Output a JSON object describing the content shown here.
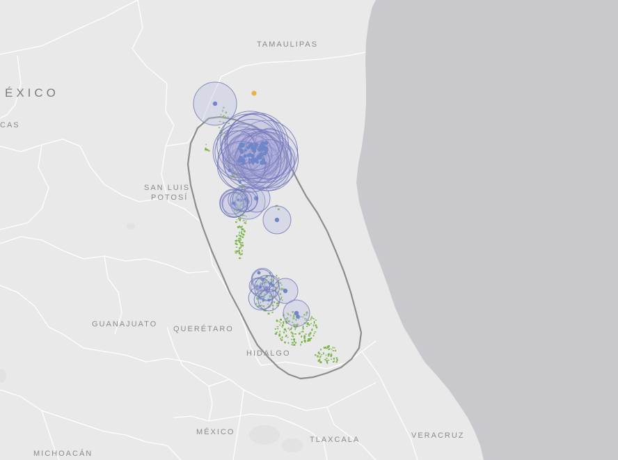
{
  "map": {
    "country_label": "ÉXICO",
    "labels": {
      "tamaulipas": "TAMAULIPAS",
      "cas": "CAS",
      "san_luis_line1": "SAN LUIS",
      "san_luis_line2": "POTOSÍ",
      "guanajuato": "GUANAJUATO",
      "queretaro": "QUERÉTARO",
      "hidalgo": "HIDALGO",
      "mexico": "MÉXICO",
      "tlaxcala": "TLAXCALA",
      "veracruz": "VERACRUZ",
      "michoacan": "MICHOACÁN"
    },
    "colors": {
      "land": "#e9e9e9",
      "water": "#c9c8cd",
      "boundary": "#ffffff",
      "range_outline": "#878f8a",
      "occurrence_green": "#7db34a",
      "buffer_circle": "#7478b8",
      "buffer_point": "#6f87c8",
      "highlight_point": "#e8b24a"
    }
  }
}
